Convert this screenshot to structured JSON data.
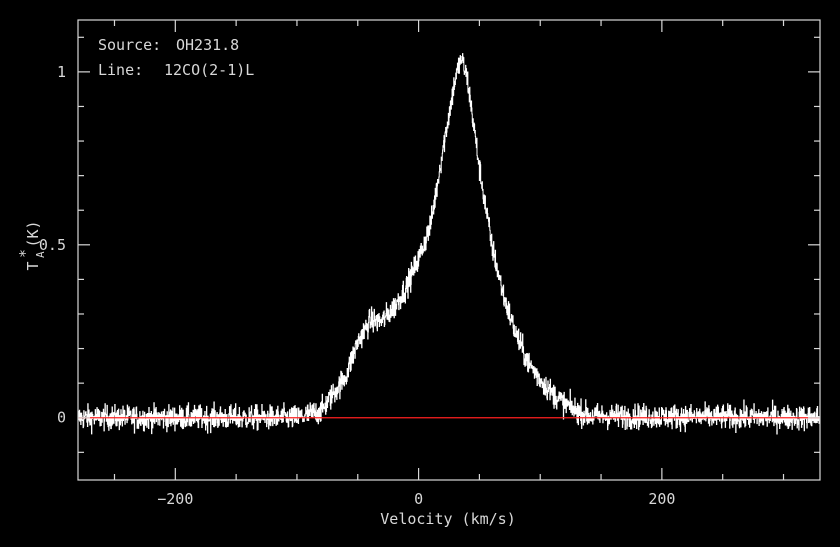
{
  "chart_data": {
    "type": "line",
    "title": "",
    "annotations": {
      "source_label": "Source:",
      "source_value": "OH231.8",
      "line_label": "Line:",
      "line_value": "12CO(2-1)L"
    },
    "xlabel": "Velocity (km/s)",
    "ylabel_main": "T",
    "ylabel_sub": "A",
    "ylabel_sup": "*",
    "ylabel_unit": "(K)",
    "xlim": [
      -280,
      330
    ],
    "ylim": [
      -0.18,
      1.15
    ],
    "xticks": [
      {
        "value": -200,
        "label": "−200"
      },
      {
        "value": 0,
        "label": "0"
      },
      {
        "value": 200,
        "label": "200"
      }
    ],
    "yticks": [
      {
        "value": 0,
        "label": "0"
      },
      {
        "value": 0.5,
        "label": "0.5"
      },
      {
        "value": 1,
        "label": "1"
      }
    ],
    "x_minor_step": 50,
    "y_minor_step": 0.1,
    "grid": false,
    "series": [
      {
        "color": "#ffffff",
        "noise_amplitude": 0.035,
        "x": [
          -280,
          -100,
          -80,
          -60,
          -50,
          -40,
          -30,
          -20,
          -10,
          0,
          10,
          20,
          30,
          35,
          40,
          50,
          60,
          70,
          80,
          90,
          100,
          110,
          120,
          130,
          140,
          330
        ],
        "y": [
          0,
          0,
          0.02,
          0.12,
          0.22,
          0.28,
          0.28,
          0.32,
          0.38,
          0.46,
          0.56,
          0.78,
          0.98,
          1.04,
          0.98,
          0.72,
          0.5,
          0.35,
          0.24,
          0.16,
          0.11,
          0.07,
          0.04,
          0.02,
          0.005,
          0
        ]
      }
    ],
    "baseline": {
      "y": 0,
      "x_from": -280,
      "x_to": 330,
      "color": "#ff2020"
    }
  }
}
